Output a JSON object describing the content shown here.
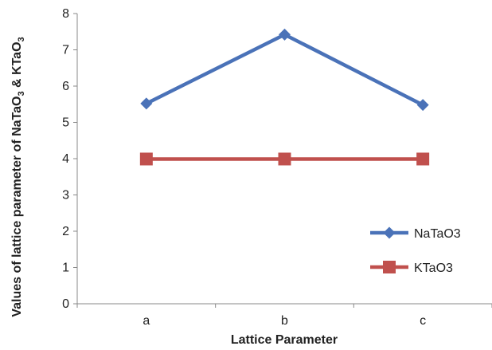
{
  "chart_data": {
    "type": "line",
    "categories": [
      "a",
      "b",
      "c"
    ],
    "series": [
      {
        "name": "NaTaO3",
        "values": [
          5.52,
          7.42,
          5.48
        ],
        "color": "#4a72b8",
        "marker": "diamond"
      },
      {
        "name": "KTaO3",
        "values": [
          3.99,
          3.99,
          3.99
        ],
        "color": "#c0504d",
        "marker": "square"
      }
    ],
    "title": "",
    "xlabel": "Lattice Parameter",
    "ylabel_parts": {
      "main": "Values of lattice parameter of NaTaO",
      "sub1": "3",
      "mid": " & KTaO",
      "sub2": "3"
    },
    "ylim": [
      0,
      8
    ],
    "yticks": [
      0,
      1,
      2,
      3,
      4,
      5,
      6,
      7,
      8
    ],
    "grid": false,
    "legend_position": "right"
  }
}
